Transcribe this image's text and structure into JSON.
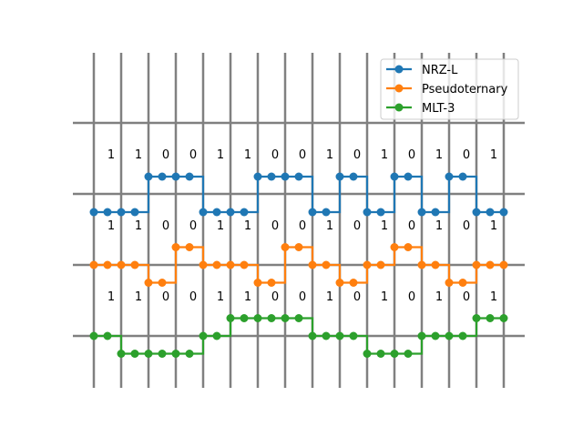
{
  "chart_data": {
    "type": "line",
    "title": "",
    "xlabel": "",
    "ylabel": "",
    "bits": [
      "1",
      "1",
      "0",
      "0",
      "1",
      "1",
      "0",
      "0",
      "1",
      "0",
      "1",
      "0",
      "1",
      "0",
      "1"
    ],
    "grid": {
      "vertical_lines": 16,
      "horizontal_lines": 4
    },
    "legend": {
      "placement": "top-right"
    },
    "series": [
      {
        "name": "NRZ-L",
        "color": "#1f77b4",
        "points": [
          [
            0,
            0
          ],
          [
            0.5,
            0
          ],
          [
            1,
            0
          ],
          [
            1.5,
            0
          ],
          [
            2,
            1
          ],
          [
            2.5,
            1
          ],
          [
            3,
            1
          ],
          [
            3.5,
            1
          ],
          [
            4,
            0
          ],
          [
            4.5,
            0
          ],
          [
            5,
            0
          ],
          [
            5.5,
            0
          ],
          [
            6,
            1
          ],
          [
            6.5,
            1
          ],
          [
            7,
            1
          ],
          [
            7.5,
            1
          ],
          [
            8,
            0
          ],
          [
            8.5,
            0
          ],
          [
            9,
            1
          ],
          [
            9.5,
            1
          ],
          [
            10,
            0
          ],
          [
            10.5,
            0
          ],
          [
            11,
            1
          ],
          [
            11.5,
            1
          ],
          [
            12,
            0
          ],
          [
            12.5,
            0
          ],
          [
            13,
            1
          ],
          [
            13.5,
            1
          ],
          [
            14,
            0
          ],
          [
            14.5,
            0
          ],
          [
            15,
            0
          ]
        ]
      },
      {
        "name": "Pseudoternary",
        "color": "#ff7f0e",
        "points": [
          [
            0,
            0
          ],
          [
            0.5,
            0
          ],
          [
            1,
            0
          ],
          [
            1.5,
            0
          ],
          [
            2,
            -0.5
          ],
          [
            2.5,
            -0.5
          ],
          [
            3,
            0.5
          ],
          [
            3.5,
            0.5
          ],
          [
            4,
            0
          ],
          [
            4.5,
            0
          ],
          [
            5,
            0
          ],
          [
            5.5,
            0
          ],
          [
            6,
            -0.5
          ],
          [
            6.5,
            -0.5
          ],
          [
            7,
            0.5
          ],
          [
            7.5,
            0.5
          ],
          [
            8,
            0
          ],
          [
            8.5,
            0
          ],
          [
            9,
            -0.5
          ],
          [
            9.5,
            -0.5
          ],
          [
            10,
            0
          ],
          [
            10.5,
            0
          ],
          [
            11,
            0.5
          ],
          [
            11.5,
            0.5
          ],
          [
            12,
            0
          ],
          [
            12.5,
            0
          ],
          [
            13,
            -0.5
          ],
          [
            13.5,
            -0.5
          ],
          [
            14,
            0
          ],
          [
            14.5,
            0
          ],
          [
            15,
            0
          ]
        ]
      },
      {
        "name": "MLT-3",
        "color": "#2ca02c",
        "points": [
          [
            0,
            0
          ],
          [
            0.5,
            0
          ],
          [
            1,
            -0.25
          ],
          [
            1.5,
            -0.25
          ],
          [
            2,
            -0.25
          ],
          [
            2.5,
            -0.25
          ],
          [
            3,
            -0.25
          ],
          [
            3.5,
            -0.25
          ],
          [
            4,
            0
          ],
          [
            4.5,
            0
          ],
          [
            5,
            0.25
          ],
          [
            5.5,
            0.25
          ],
          [
            6,
            0.25
          ],
          [
            6.5,
            0.25
          ],
          [
            7,
            0.25
          ],
          [
            7.5,
            0.25
          ],
          [
            8,
            0
          ],
          [
            8.5,
            0
          ],
          [
            9,
            0
          ],
          [
            9.5,
            0
          ],
          [
            10,
            -0.25
          ],
          [
            10.5,
            -0.25
          ],
          [
            11,
            -0.25
          ],
          [
            11.5,
            -0.25
          ],
          [
            12,
            0
          ],
          [
            12.5,
            0
          ],
          [
            13,
            0
          ],
          [
            13.5,
            0
          ],
          [
            14,
            0.25
          ],
          [
            14.5,
            0.25
          ],
          [
            15,
            0.25
          ]
        ]
      }
    ]
  }
}
